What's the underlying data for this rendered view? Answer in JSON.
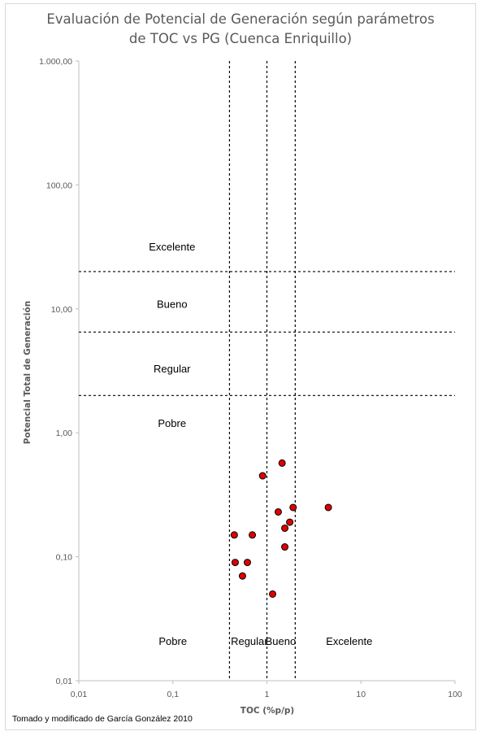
{
  "chart_data": {
    "type": "scatter",
    "title_line1": "Evaluación de Potencial de Generación según parámetros",
    "title_line2": "de TOC vs PG (Cuenca Enriquillo)",
    "xlabel": "TOC (%p/p)",
    "ylabel": "Potencial Total de Generación",
    "x_scale": "log",
    "y_scale": "log",
    "xlim": [
      0.01,
      100
    ],
    "ylim": [
      0.01,
      1000
    ],
    "x_tick_values": [
      0.01,
      0.1,
      1,
      10,
      100
    ],
    "x_tick_labels": [
      "0,01",
      "0,1",
      "1",
      "10",
      "100"
    ],
    "y_tick_values": [
      0.01,
      0.1,
      1,
      10,
      100,
      1000
    ],
    "y_tick_labels": [
      "0,01",
      "0,10",
      "1,00",
      "10,00",
      "100,00",
      "1.000,00"
    ],
    "grid": false,
    "vertical_thresholds": [
      0.4,
      1,
      2
    ],
    "horizontal_thresholds": [
      2,
      6.5,
      20
    ],
    "y_zone_labels": [
      {
        "text": "Excelente",
        "x": 0.1,
        "y": 32
      },
      {
        "text": "Bueno",
        "x": 0.1,
        "y": 11
      },
      {
        "text": "Regular",
        "x": 0.1,
        "y": 3.3
      },
      {
        "text": "Pobre",
        "x": 0.1,
        "y": 1.2
      }
    ],
    "x_zone_labels": [
      {
        "text": "Pobre",
        "x": 0.1,
        "y": 0.021
      },
      {
        "text": "Regular",
        "x": 0.65,
        "y": 0.021
      },
      {
        "text": "Bueno",
        "x": 1.4,
        "y": 0.021
      },
      {
        "text": "Excelente",
        "x": 7.5,
        "y": 0.021
      }
    ],
    "point_color": "#e00000",
    "points": [
      {
        "x": 0.9,
        "y": 0.45
      },
      {
        "x": 1.45,
        "y": 0.57
      },
      {
        "x": 1.32,
        "y": 0.23
      },
      {
        "x": 1.9,
        "y": 0.25
      },
      {
        "x": 4.5,
        "y": 0.25
      },
      {
        "x": 1.75,
        "y": 0.19
      },
      {
        "x": 1.55,
        "y": 0.17
      },
      {
        "x": 0.45,
        "y": 0.15
      },
      {
        "x": 0.7,
        "y": 0.15
      },
      {
        "x": 1.55,
        "y": 0.12
      },
      {
        "x": 0.46,
        "y": 0.09
      },
      {
        "x": 0.62,
        "y": 0.09
      },
      {
        "x": 0.55,
        "y": 0.07
      },
      {
        "x": 1.15,
        "y": 0.05
      }
    ]
  },
  "footer": {
    "source": "Tomado y modificado de García González 2010"
  }
}
